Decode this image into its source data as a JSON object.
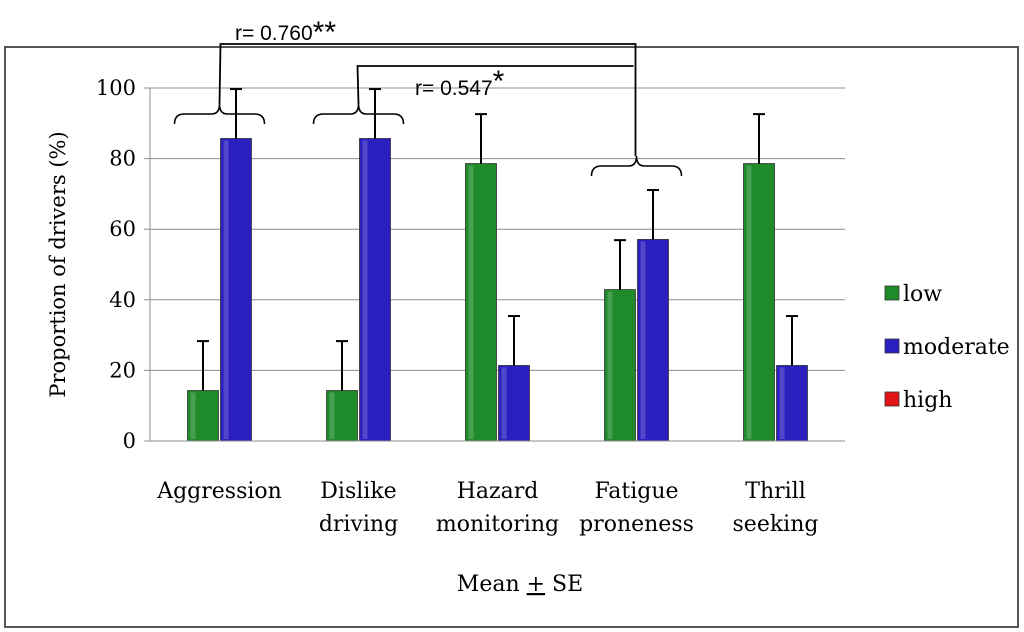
{
  "chart_data": {
    "type": "bar",
    "categories": [
      [
        "Aggression"
      ],
      [
        "Dislike",
        "driving"
      ],
      [
        "Hazard",
        "monitoring"
      ],
      [
        "Fatigue",
        "proneness"
      ],
      [
        "Thrill",
        "seeking"
      ]
    ],
    "series": [
      {
        "name": "low",
        "color": "#1f8a2a",
        "values": [
          14.3,
          14.3,
          78.6,
          42.9,
          78.6
        ],
        "errors": [
          14,
          14,
          14,
          14,
          14
        ]
      },
      {
        "name": "moderate",
        "color": "#2b1fc0",
        "values": [
          85.7,
          85.7,
          21.4,
          57.1,
          21.4
        ],
        "errors": [
          14,
          14,
          14,
          14,
          14
        ]
      },
      {
        "name": "high",
        "color": "#e3141a",
        "values": [
          0,
          0,
          0,
          0,
          0
        ],
        "errors": [
          0,
          0,
          0,
          0,
          0
        ]
      }
    ],
    "ylabel": "Proportion of drivers (%)",
    "xlabel_parts": [
      "Mean ",
      "+",
      " SE"
    ],
    "ylim": [
      0,
      100
    ],
    "yticks": [
      0,
      20,
      40,
      60,
      80,
      100
    ],
    "grid": true,
    "legend_position": "right",
    "annotations": [
      {
        "text": "r= 0.760",
        "stars": "**",
        "from_category": 0,
        "to_category": 3
      },
      {
        "text": "r= 0.547",
        "stars": "*",
        "from_category": 1,
        "to_category": 3
      }
    ]
  }
}
